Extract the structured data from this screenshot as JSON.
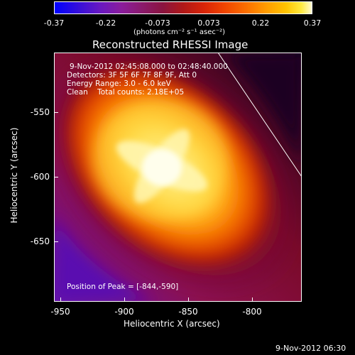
{
  "colorbar": {
    "ticks": [
      "-0.37",
      "-0.22",
      "-0.073",
      "0.073",
      "0.22",
      "0.37"
    ],
    "unit": "(photons cm⁻² s⁻¹ asec⁻²)"
  },
  "title": "Reconstructed RHESSI Image",
  "annotations": {
    "time_range": "9-Nov-2012 02:45:08.000 to 02:48:40.000",
    "detectors": "Detectors: 3F 5F 6F 7F 8F 9F, Att 0",
    "energy": "Energy Range: 3.0 - 6.0 keV",
    "clean": "Clean    Total counts: 2.18E+05",
    "peak": "Position of Peak = [-844,-590]"
  },
  "axes": {
    "xlabel": "Heliocentric X (arcsec)",
    "ylabel": "Heliocentric Y (arcsec)",
    "xticks": [
      "-950",
      "-900",
      "-850",
      "-800"
    ],
    "yticks": [
      "-550",
      "-600",
      "-650"
    ]
  },
  "footer": {
    "timestamp": "9-Nov-2012 06:30"
  }
}
